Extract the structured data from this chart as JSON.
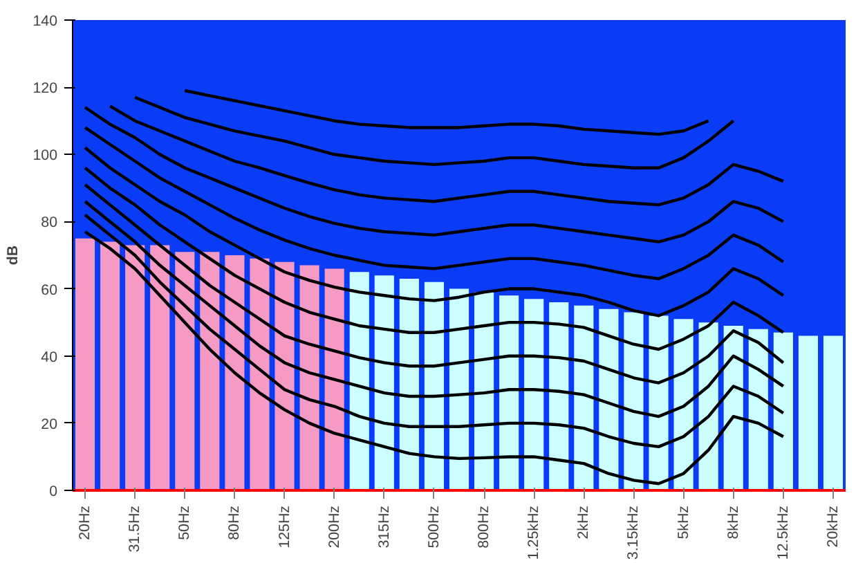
{
  "chart_data": {
    "type": "bar",
    "ylabel": "dB",
    "categories": [
      "20Hz",
      null,
      "31.5Hz",
      null,
      "50Hz",
      null,
      "80Hz",
      null,
      "125Hz",
      null,
      "200Hz",
      null,
      "315Hz",
      null,
      "500Hz",
      null,
      "800Hz",
      null,
      "1.25kHz",
      null,
      "2kHz",
      null,
      "3.15kHz",
      null,
      "5kHz",
      null,
      "8kHz",
      null,
      "12.5kHz",
      null,
      "20kHz"
    ],
    "ylim": [
      0,
      140
    ],
    "yticks": [
      0,
      20,
      40,
      60,
      80,
      100,
      120,
      140
    ],
    "grid": false,
    "series": [
      {
        "colors": [
          "#f59ac4",
          "#f59ac4",
          "#f59ac4",
          "#f59ac4",
          "#f59ac4",
          "#f59ac4",
          "#f59ac4",
          "#f59ac4",
          "#f59ac4",
          "#f59ac4",
          "#f59ac4",
          "#ccffff",
          "#ccffff",
          "#ccffff",
          "#ccffff",
          "#ccffff",
          "#ccffff",
          "#ccffff",
          "#ccffff",
          "#ccffff",
          "#ccffff",
          "#ccffff",
          "#ccffff",
          "#ccffff",
          "#ccffff",
          "#ccffff",
          "#ccffff",
          "#ccffff",
          "#ccffff",
          "#ccffff",
          "#ccffff"
        ],
        "values": [
          75,
          74,
          73,
          73,
          71,
          71,
          70,
          69,
          68,
          67,
          66,
          65,
          64,
          63,
          62,
          60,
          59,
          58,
          57,
          56,
          55,
          54,
          53,
          52,
          51,
          50,
          49,
          48,
          47,
          46,
          46
        ]
      },
      {
        "type": "line",
        "color": "#000000",
        "values": [
          77,
          72,
          66,
          58,
          50,
          42,
          35,
          29,
          24,
          20,
          17,
          15,
          13,
          11,
          10,
          9.5,
          9.7,
          10,
          10,
          9,
          8,
          5,
          3,
          2,
          5,
          12,
          22,
          20,
          16,
          null,
          null
        ]
      },
      {
        "type": "line",
        "color": "#000000",
        "values": [
          82,
          76,
          70,
          62,
          55,
          48,
          42,
          36,
          30,
          27,
          25,
          22,
          20,
          19,
          19,
          19,
          19.5,
          20,
          20,
          19.5,
          18.5,
          16,
          14,
          13,
          16,
          22,
          31,
          28,
          23,
          null,
          null
        ]
      },
      {
        "type": "line",
        "color": "#000000",
        "values": [
          86,
          80,
          74,
          67,
          61,
          55,
          49,
          43,
          38,
          35,
          33,
          31,
          29,
          28,
          28,
          28.5,
          29,
          30,
          30,
          29.5,
          28.5,
          26,
          23.5,
          22,
          25,
          31,
          40,
          36,
          31,
          null,
          null
        ]
      },
      {
        "type": "line",
        "color": "#000000",
        "values": [
          91,
          85,
          79,
          73,
          67,
          61,
          56,
          51,
          46,
          43.5,
          41.5,
          39.5,
          38,
          37,
          37,
          38,
          39,
          40,
          40,
          39.5,
          38.5,
          36,
          33.5,
          32,
          35,
          40,
          47.5,
          44,
          38,
          null,
          null
        ]
      },
      {
        "type": "line",
        "color": "#000000",
        "values": [
          96,
          90,
          85,
          79,
          74,
          69,
          64,
          60,
          56,
          53,
          51,
          49,
          48,
          47,
          47,
          48,
          49,
          50,
          50,
          49.5,
          48.5,
          46,
          43.5,
          42,
          45,
          49,
          56,
          52,
          47,
          null,
          null
        ]
      },
      {
        "type": "line",
        "color": "#000000",
        "values": [
          102,
          96,
          91,
          86,
          82,
          77,
          73,
          69,
          65,
          62.5,
          60.5,
          59,
          58,
          57,
          56.5,
          57.5,
          59,
          60,
          60,
          59,
          58,
          56,
          53.5,
          52,
          55,
          59,
          66,
          63,
          58,
          null,
          null
        ]
      },
      {
        "type": "line",
        "color": "#000000",
        "values": [
          108,
          103,
          98,
          93,
          89,
          85,
          81,
          77.5,
          74.5,
          72,
          70,
          68.5,
          67,
          66.5,
          66,
          67,
          68,
          69,
          69,
          68,
          67,
          65.5,
          64,
          63,
          66,
          70,
          76,
          73,
          68,
          null,
          null
        ]
      },
      {
        "type": "line",
        "color": "#000000",
        "values": [
          114,
          109,
          105,
          100,
          96,
          93,
          90,
          87,
          84,
          81.5,
          79.5,
          78,
          77,
          76.5,
          76,
          77,
          78,
          79,
          79,
          78,
          77,
          76,
          75,
          74,
          76,
          80,
          86,
          84,
          80,
          null,
          null
        ]
      },
      {
        "type": "line",
        "color": "#000000",
        "values": [
          null,
          114.4,
          110,
          107,
          104,
          101,
          98,
          96,
          93.7,
          91.5,
          89.5,
          88,
          87,
          86.5,
          86,
          87,
          88,
          89,
          89,
          88,
          87,
          86,
          85.5,
          85,
          87,
          91,
          97,
          95,
          92,
          null,
          null
        ]
      },
      {
        "type": "line",
        "color": "#000000",
        "values": [
          null,
          null,
          117,
          114,
          111,
          109,
          107,
          105.5,
          104,
          102,
          100,
          99,
          98,
          97.5,
          97,
          97.5,
          98,
          99,
          99,
          98,
          97,
          96.5,
          96,
          96,
          99,
          104,
          110,
          null,
          null,
          null,
          null
        ]
      },
      {
        "type": "line",
        "color": "#000000",
        "values": [
          null,
          null,
          null,
          null,
          119,
          117.5,
          116,
          114.5,
          113,
          111.5,
          110,
          109,
          108.5,
          108,
          108,
          108,
          108.5,
          109,
          109,
          108.5,
          107.5,
          107,
          106.5,
          106,
          107,
          110,
          null,
          null,
          null,
          null,
          null
        ]
      }
    ]
  }
}
